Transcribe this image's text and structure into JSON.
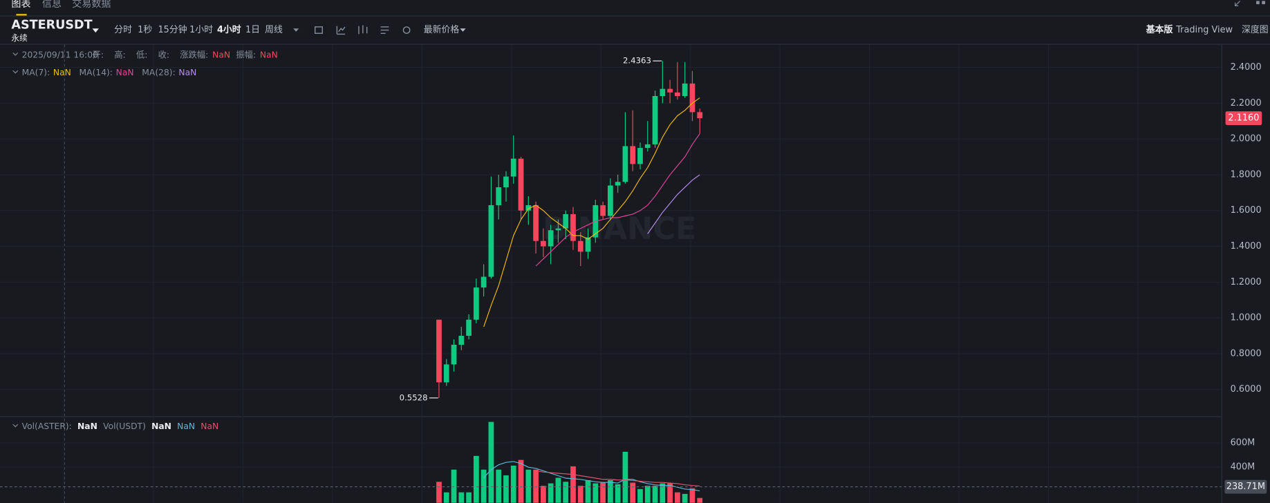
{
  "tabs": [
    "图表",
    "信息",
    "交易数据"
  ],
  "symbol": "ASTERUSDT",
  "contract": "永续",
  "intervals": [
    "分时",
    "1秒",
    "15分钟",
    "1小时",
    "4小时",
    "1日",
    "周线"
  ],
  "active_interval": 4,
  "price_type": "最新价格",
  "views": [
    "基本版",
    "Trading View",
    "深度图"
  ],
  "legend": {
    "date": "2025/09/11 16:00",
    "fields": [
      {
        "label": "开:"
      },
      {
        "label": "高:"
      },
      {
        "label": "低:"
      },
      {
        "label": "收:"
      },
      {
        "label": "涨跌幅:",
        "value": "NaN"
      },
      {
        "label": "振幅:",
        "value": "NaN"
      }
    ]
  },
  "watermark": "BINANCE",
  "chart_data": {
    "type": "candlestick",
    "up_color": "#0ecb81",
    "down_color": "#f6465d",
    "grid": true,
    "open": [
      0.99,
      0.64,
      0.74,
      0.85,
      0.9,
      0.99,
      1.17,
      1.23,
      1.63,
      1.73,
      1.79,
      1.89,
      1.6,
      1.63,
      1.43,
      1.4,
      1.49,
      1.5,
      1.58,
      1.43,
      1.37,
      1.45,
      1.63,
      1.57,
      1.74,
      1.76,
      1.96,
      1.86,
      1.95,
      1.97,
      2.24,
      2.28,
      2.26,
      2.24,
      2.31,
      2.15
    ],
    "high": [
      0.99,
      0.77,
      0.88,
      0.95,
      1.02,
      1.22,
      1.3,
      1.79,
      1.8,
      1.82,
      2.02,
      1.9,
      1.68,
      1.65,
      1.5,
      1.52,
      1.55,
      1.6,
      1.62,
      1.48,
      1.5,
      1.66,
      1.65,
      1.78,
      1.8,
      2.15,
      2.16,
      1.98,
      2.1,
      2.27,
      2.4363,
      2.33,
      2.43,
      2.43,
      2.38,
      2.17
    ],
    "low": [
      0.5528,
      0.62,
      0.7,
      0.82,
      0.88,
      0.97,
      1.12,
      1.22,
      1.55,
      1.65,
      1.75,
      1.55,
      1.52,
      1.36,
      1.34,
      1.3,
      1.42,
      1.44,
      1.38,
      1.29,
      1.33,
      1.42,
      1.55,
      1.55,
      1.7,
      1.75,
      1.82,
      1.83,
      1.93,
      1.95,
      2.2,
      2.2,
      2.22,
      2.23,
      2.1,
      2.03
    ],
    "close": [
      0.64,
      0.74,
      0.85,
      0.9,
      0.99,
      1.17,
      1.23,
      1.63,
      1.73,
      1.79,
      1.89,
      1.6,
      1.63,
      1.43,
      1.4,
      1.49,
      1.5,
      1.58,
      1.43,
      1.37,
      1.45,
      1.63,
      1.57,
      1.74,
      1.76,
      1.96,
      1.86,
      1.95,
      1.97,
      2.24,
      2.28,
      2.26,
      2.24,
      2.31,
      2.15,
      2.116
    ],
    "ylim": [
      0.455,
      2.527
    ],
    "yticks": [
      {
        "value": 0.6,
        "label": "0.6000"
      },
      {
        "value": 0.8,
        "label": "0.8000"
      },
      {
        "value": 1.0,
        "label": "1.0000"
      },
      {
        "value": 1.2,
        "label": "1.2000"
      },
      {
        "value": 1.4,
        "label": "1.4000"
      },
      {
        "value": 1.6,
        "label": "1.6000"
      },
      {
        "value": 1.8,
        "label": "1.8000"
      },
      {
        "value": 2.0,
        "label": "2.0000"
      },
      {
        "value": 2.2,
        "label": "2.2000"
      },
      {
        "value": 2.4,
        "label": "2.4000"
      }
    ],
    "high_annotation": 2.4363,
    "low_annotation": 0.5528,
    "current_price": {
      "value": 2.116,
      "label": "2.1160"
    },
    "series": [
      {
        "name": "MA(7):",
        "legend_value": "NaN",
        "color": "#f0b90b",
        "values": [
          null,
          null,
          null,
          null,
          null,
          null,
          0.95,
          1.07,
          1.18,
          1.32,
          1.46,
          1.55,
          1.61,
          1.63,
          1.6,
          1.56,
          1.53,
          1.5,
          1.46,
          1.46,
          1.44,
          1.47,
          1.5,
          1.55,
          1.6,
          1.65,
          1.71,
          1.78,
          1.84,
          1.92,
          2.01,
          2.08,
          2.13,
          2.16,
          2.2,
          2.23
        ]
      },
      {
        "name": "MA(14):",
        "legend_value": "NaN",
        "color": "#e0449a",
        "values": [
          null,
          null,
          null,
          null,
          null,
          null,
          null,
          null,
          null,
          null,
          null,
          null,
          null,
          1.29,
          1.33,
          1.37,
          1.41,
          1.45,
          1.48,
          1.5,
          1.52,
          1.54,
          1.55,
          1.56,
          1.56,
          1.57,
          1.58,
          1.6,
          1.63,
          1.68,
          1.74,
          1.8,
          1.85,
          1.9,
          1.97,
          2.03
        ]
      },
      {
        "name": "MA(28):",
        "legend_value": "NaN",
        "color": "#b38cf0",
        "values": [
          null,
          null,
          null,
          null,
          null,
          null,
          null,
          null,
          null,
          null,
          null,
          null,
          null,
          null,
          null,
          null,
          null,
          null,
          null,
          null,
          null,
          null,
          null,
          null,
          null,
          null,
          null,
          null,
          1.47,
          1.53,
          1.59,
          1.64,
          1.69,
          1.73,
          1.77,
          1.8
        ]
      }
    ],
    "volume": {
      "legend": [
        {
          "name": "Vol(ASTER):",
          "value": "NaN"
        },
        {
          "name": "Vol(USDT)",
          "value": "NaN"
        }
      ],
      "values": [
        280000000,
        193000000,
        380000000,
        193000000,
        193000000,
        493000000,
        380000000,
        773000000,
        380000000,
        333000000,
        413000000,
        460000000,
        380000000,
        380000000,
        247000000,
        267000000,
        313000000,
        280000000,
        407000000,
        247000000,
        293000000,
        267000000,
        273000000,
        293000000,
        260000000,
        527000000,
        273000000,
        220000000,
        247000000,
        247000000,
        267000000,
        267000000,
        193000000,
        180000000,
        227000000,
        147000000
      ],
      "ylim": [
        0,
        813000000
      ],
      "yticks": [
        {
          "value": 400000000,
          "label": "400M"
        },
        {
          "value": 600000000,
          "label": "600M"
        }
      ],
      "current": {
        "value": 238710000,
        "label": "238.71M"
      },
      "ma": [
        {
          "legend_value": "NaN",
          "color": "#5fb6d9",
          "values": [
            null,
            null,
            null,
            null,
            null,
            null,
            313000000,
            380000000,
            420000000,
            440000000,
            447000000,
            430000000,
            400000000,
            390000000,
            370000000,
            350000000,
            330000000,
            310000000,
            305000000,
            300000000,
            290000000,
            280000000,
            275000000,
            275000000,
            270000000,
            300000000,
            300000000,
            280000000,
            265000000,
            255000000,
            250000000,
            250000000,
            235000000,
            220000000,
            215000000,
            205000000
          ]
        },
        {
          "legend_value": "NaN",
          "color": "#d9566e",
          "values": [
            null,
            null,
            null,
            null,
            null,
            null,
            null,
            null,
            null,
            null,
            null,
            null,
            null,
            370000000,
            360000000,
            355000000,
            350000000,
            345000000,
            340000000,
            330000000,
            320000000,
            310000000,
            300000000,
            300000000,
            295000000,
            295000000,
            290000000,
            285000000,
            280000000,
            275000000,
            275000000,
            270000000,
            265000000,
            255000000,
            250000000,
            245000000
          ]
        }
      ]
    }
  }
}
